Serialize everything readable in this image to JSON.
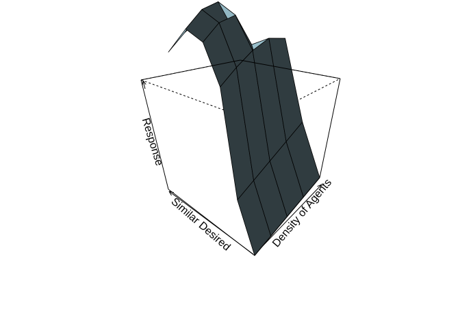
{
  "chart_data": {
    "type": "surface",
    "xlabel": "Density of Agents",
    "ylabel": "Similar Desired",
    "zlabel": "Response",
    "surface_color": "#add8e6",
    "z_levels": [
      0,
      0.4,
      1.0,
      1.4,
      2.0,
      2.8
    ],
    "z": [
      [
        0.0,
        0.0,
        0.0,
        0.0,
        0.0
      ],
      [
        0.4,
        0.4,
        0.4,
        0.4,
        0.4
      ],
      [
        2.0,
        2.0,
        1.95,
        1.8,
        1.4
      ],
      [
        2.8,
        2.8,
        2.5,
        1.4,
        0.4
      ],
      [
        2.8,
        2.8,
        2.5,
        1.4,
        0.4
      ],
      [
        1.9,
        1.9,
        1.8,
        1.0,
        0.4
      ]
    ]
  }
}
